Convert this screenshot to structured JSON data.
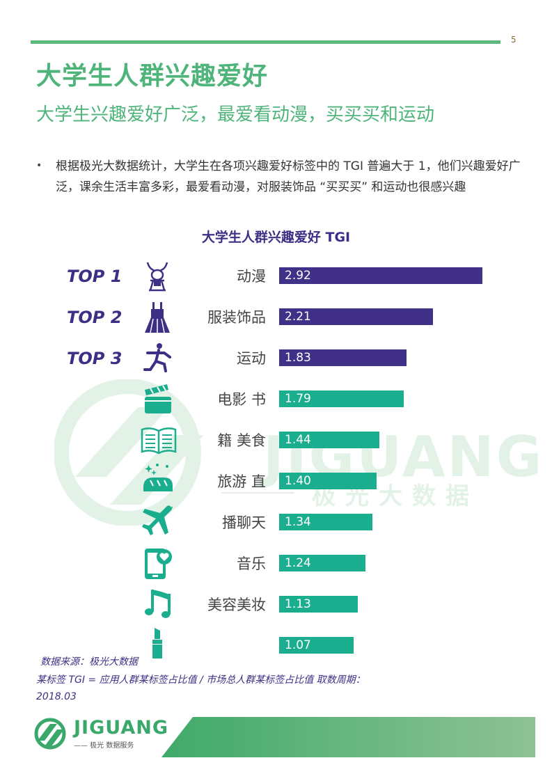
{
  "page_number": "5",
  "title": "大学生人群兴趣爱好",
  "subtitle": "大学生兴趣爱好广泛，最爱看动漫，买买买和运动",
  "bullet": "根据极光大数据统计，大学生在各项兴趣爱好标签中的 TGI 普遍大于 1，他们兴趣爱好广泛，课余生活丰富多彩，最爱看动漫，对服装饰品 “买买买” 和运动也很感兴趣",
  "chart_title": "大学生人群兴趣爱好 TGI",
  "watermark": {
    "text": "JIGUANG",
    "sub": "极光大数据"
  },
  "colors": {
    "brand_green": "#4fb47a",
    "top_purple": "#413088",
    "bar_green": "#1aae8e"
  },
  "chart_data": {
    "type": "bar",
    "orientation": "horizontal",
    "title": "大学生人群兴趣爱好 TGI",
    "categories": [
      "动漫",
      "服装饰品",
      "运动",
      "电影 书",
      "籍 美食",
      "旅游 直",
      "播聊天",
      "音乐",
      "美容美妆",
      ""
    ],
    "values": [
      2.92,
      2.21,
      1.83,
      1.79,
      1.44,
      1.4,
      1.34,
      1.24,
      1.13,
      1.07
    ],
    "value_labels": [
      "2.92",
      "2.21",
      "1.83",
      "1.79",
      "1.44",
      "1.40",
      "1.34",
      "1.24",
      "1.13",
      "1.07"
    ],
    "ranks": [
      "TOP 1",
      "TOP 2",
      "TOP 3",
      "",
      "",
      "",
      "",
      "",
      "",
      ""
    ],
    "icons": [
      "anime-character-icon",
      "dress-icon",
      "running-person-icon",
      "clapperboard-icon",
      "open-book-icon",
      "bread-icon",
      "airplane-icon",
      "phone-chat-icon",
      "music-note-icon",
      "lipstick-icon"
    ],
    "xlim": [
      0,
      2.92
    ]
  },
  "source": {
    "line1": "数据来源：极光大数据",
    "line2": "某标签 TGI = 应用人群某标签占比值 / 市场总人群某标签占比值 取数周期：",
    "line3": "2018.03"
  },
  "footer": {
    "logo_text": "JIGUANG",
    "logo_sub": "—— 极光 数据服务"
  }
}
